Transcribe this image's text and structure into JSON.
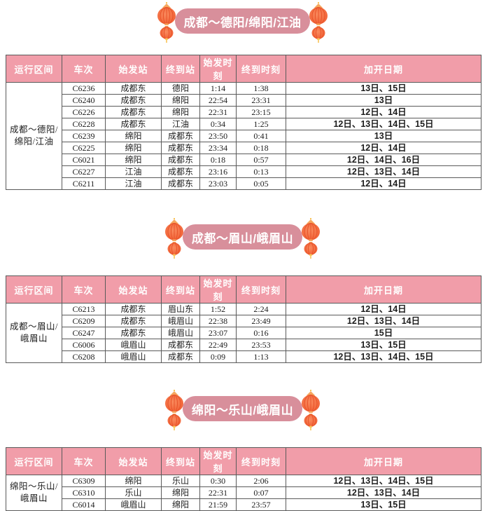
{
  "colors": {
    "title_pill_bg": "#d88f9b",
    "title_text": "#ffffff",
    "table_header_bg": "#f19da9",
    "table_header_text": "#ffffff",
    "table_border": "#5a5a5a",
    "cell_text": "#1c1c1c",
    "lantern_body": "#f05a2e",
    "lantern_body_light": "#f98a5d",
    "lantern_stripe": "#e8542b",
    "lantern_cap": "#f6a75f",
    "lantern_gold": "#f9c558"
  },
  "table_headers": [
    "运行区间",
    "车次",
    "始发站",
    "终到站",
    "始发时刻",
    "终到时刻",
    "加开日期"
  ],
  "sections": [
    {
      "title": "成都～德阳/绵阳/江油",
      "route_lines": [
        "成都～德阳/",
        "绵阳/江油"
      ],
      "rows": [
        {
          "train": "C6236",
          "from": "成都东",
          "to": "德阳",
          "depart": "1:14",
          "arrive": "1:38",
          "dates": "13日、15日"
        },
        {
          "train": "C6240",
          "from": "成都东",
          "to": "绵阳",
          "depart": "22:54",
          "arrive": "23:31",
          "dates": "13日"
        },
        {
          "train": "C6226",
          "from": "成都东",
          "to": "绵阳",
          "depart": "22:31",
          "arrive": "23:15",
          "dates": "12日、14日"
        },
        {
          "train": "C6228",
          "from": "成都东",
          "to": "江油",
          "depart": "0:34",
          "arrive": "1:25",
          "dates": "12日、13日、14日、15日"
        },
        {
          "train": "C6239",
          "from": "绵阳",
          "to": "成都东",
          "depart": "23:50",
          "arrive": "0:41",
          "dates": "13日"
        },
        {
          "train": "C6225",
          "from": "绵阳",
          "to": "成都东",
          "depart": "23:34",
          "arrive": "0:18",
          "dates": "12日、14日"
        },
        {
          "train": "C6021",
          "from": "绵阳",
          "to": "成都东",
          "depart": "0:18",
          "arrive": "0:57",
          "dates": "12日、14日、16日"
        },
        {
          "train": "C6227",
          "from": "江油",
          "to": "成都东",
          "depart": "23:16",
          "arrive": "0:13",
          "dates": "12日、13日、14日"
        },
        {
          "train": "C6211",
          "from": "江油",
          "to": "成都东",
          "depart": "23:03",
          "arrive": "0:05",
          "dates": "12日、14日"
        }
      ]
    },
    {
      "title": "成都～眉山/峨眉山",
      "route_lines": [
        "成都～眉山/",
        "峨眉山"
      ],
      "rows": [
        {
          "train": "C6213",
          "from": "成都东",
          "to": "眉山东",
          "depart": "1:52",
          "arrive": "2:24",
          "dates": "12日、14日"
        },
        {
          "train": "C6209",
          "from": "成都东",
          "to": "峨眉山",
          "depart": "22:38",
          "arrive": "23:49",
          "dates": "12日、13日、14日"
        },
        {
          "train": "C6247",
          "from": "成都东",
          "to": "峨眉山",
          "depart": "23:07",
          "arrive": "0:16",
          "dates": "15日"
        },
        {
          "train": "C6006",
          "from": "峨眉山",
          "to": "成都东",
          "depart": "22:49",
          "arrive": "23:53",
          "dates": "13日、15日"
        },
        {
          "train": "C6208",
          "from": "峨眉山",
          "to": "成都东",
          "depart": "0:09",
          "arrive": "1:13",
          "dates": "12日、13日、14日、15日"
        }
      ]
    },
    {
      "title": "绵阳～乐山/峨眉山",
      "route_lines": [
        "绵阳～乐山/",
        "峨眉山"
      ],
      "rows": [
        {
          "train": "C6309",
          "from": "绵阳",
          "to": "乐山",
          "depart": "0:30",
          "arrive": "2:06",
          "dates": "12日、13日、14日、15日"
        },
        {
          "train": "C6310",
          "from": "乐山",
          "to": "绵阳",
          "depart": "22:31",
          "arrive": "0:07",
          "dates": "12日、13日、14日"
        },
        {
          "train": "C6014",
          "from": "峨眉山",
          "to": "绵阳",
          "depart": "21:59",
          "arrive": "23:57",
          "dates": "13日、15日"
        }
      ]
    }
  ]
}
